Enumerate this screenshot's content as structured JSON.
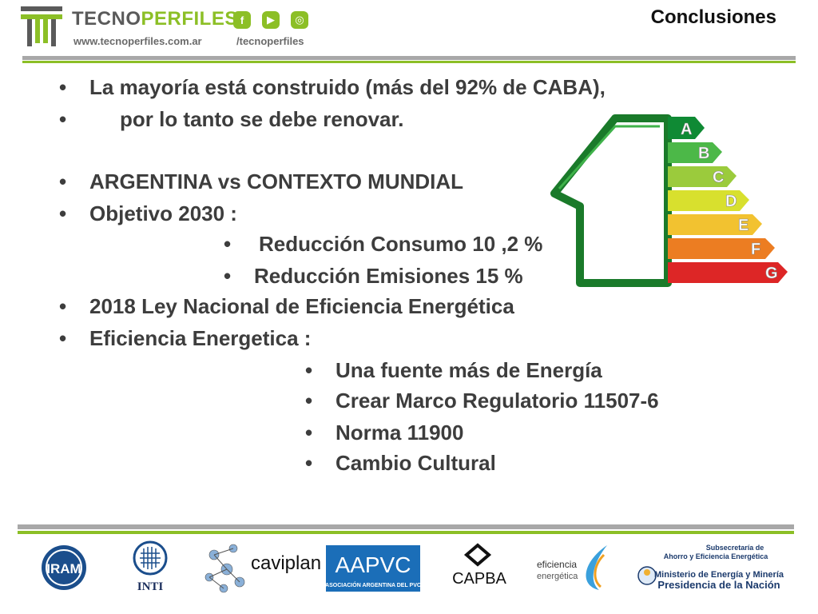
{
  "header": {
    "brand_left": "TECNO",
    "brand_right": "PERFILES",
    "brand_mark": "®",
    "url": "www.tecnoperfiles.com.ar",
    "social_handle": "/tecnoperfiles",
    "social_icons": [
      "facebook-icon",
      "youtube-icon",
      "instagram-icon"
    ],
    "section_title": "Conclusiones"
  },
  "bullets": [
    {
      "text": "La mayoría está construido (más del 92% de CABA),"
    },
    {
      "text": "por lo tanto se debe renovar."
    },
    {
      "text": "ARGENTINA vs CONTEXTO MUNDIAL"
    },
    {
      "text": "Objetivo  2030 :"
    },
    {
      "text": "Reducción  Consumo 10 ,2 %"
    },
    {
      "text": "Reducción Emisiones 15 %"
    },
    {
      "text": "2018 Ley Nacional de Eficiencia Energética"
    },
    {
      "text": "Eficiencia Energetica :"
    },
    {
      "text": "Una fuente más de Energía"
    },
    {
      "text": "Crear Marco Regulatorio 11507-6"
    },
    {
      "text": "Norma 11900"
    },
    {
      "text": "Cambio Cultural"
    }
  ],
  "energy_labels": [
    "A",
    "B",
    "C",
    "D",
    "E",
    "F",
    "G"
  ],
  "footer": {
    "iram": "IRAM",
    "inti": "INTI",
    "caviplan": "caviplan",
    "aapvc": "AAPVC",
    "aapvc_sub": "ASOCIACIÓN ARGENTINA DEL PVC",
    "capba": "CAPBA",
    "eficiencia_1": "eficiencia",
    "eficiencia_2": "energética",
    "ministerio_1": "Subsecretaría de",
    "ministerio_2": "Ahorro y Eficiencia Energética",
    "ministerio_3": "Ministerio de Energía y Minería",
    "ministerio_4": "Presidencia de la Nación"
  },
  "colors": {
    "brand_green": "#8cbf26",
    "text_grey": "#3d3d3d",
    "rule_grey": "#a8a8a8"
  }
}
